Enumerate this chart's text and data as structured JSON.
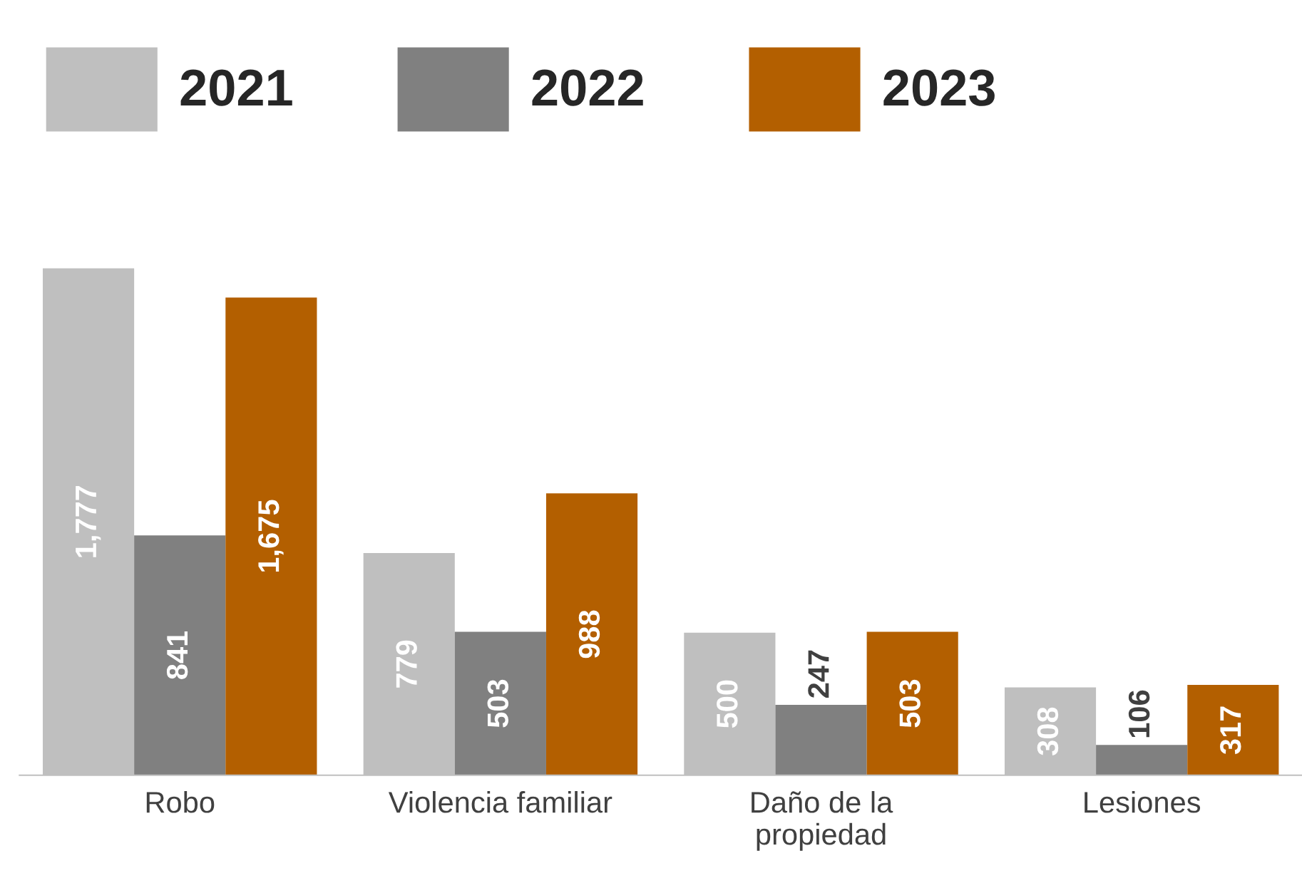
{
  "chart_data": {
    "type": "bar",
    "categories": [
      "Robo",
      "Violencia familiar",
      "Daño de la\npropiedad",
      "Lesiones"
    ],
    "series": [
      {
        "name": "2021",
        "color": "#bfbfbf",
        "values": [
          1777,
          779,
          500,
          308
        ],
        "value_labels": [
          "1,777",
          "779",
          "500",
          "308"
        ]
      },
      {
        "name": "2022",
        "color": "#808080",
        "values": [
          841,
          503,
          247,
          106
        ],
        "value_labels": [
          "841",
          "503",
          "247",
          "106"
        ]
      },
      {
        "name": "2023",
        "color": "#b35f00",
        "values": [
          1675,
          988,
          503,
          317
        ],
        "value_labels": [
          "1,675",
          "988",
          "503",
          "317"
        ]
      }
    ],
    "legend": "top",
    "grid": false
  }
}
